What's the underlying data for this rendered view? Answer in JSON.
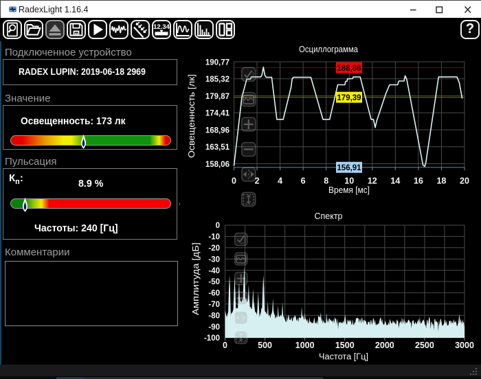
{
  "window": {
    "title": "RadexLight 1.16.4",
    "app_icon": "waveform-logo",
    "controls": {
      "minimize": "minimize",
      "maximize": "maximize",
      "close": "close"
    }
  },
  "toolbar": {
    "buttons": [
      {
        "name": "zoom-document",
        "icon": "zoom-document-icon"
      },
      {
        "name": "open-file",
        "icon": "open-folder-icon"
      },
      {
        "name": "eject-device",
        "icon": "eject-icon"
      },
      {
        "name": "save",
        "icon": "floppy-icon"
      },
      {
        "name": "start-measurement",
        "icon": "play-icon"
      },
      {
        "name": "record-waveform",
        "icon": "waveform-icon"
      },
      {
        "name": "light-rays",
        "icon": "light-rays-icon"
      },
      {
        "name": "numeric-display",
        "icon": "numeric-display-icon",
        "text": "12.34"
      },
      {
        "name": "oscillogram-view",
        "icon": "oscillogram-icon"
      },
      {
        "name": "spectrum-view",
        "icon": "spectrum-icon"
      },
      {
        "name": "layout-panels",
        "icon": "layout-icon"
      }
    ],
    "help_label": "?"
  },
  "left_panel": {
    "device": {
      "label": "Подключенное устройство",
      "value": "RADEX LUPIN: 2019-06-18 2969"
    },
    "value": {
      "label": "Значение",
      "reading": "Освещенность: 173 лк",
      "marker_pct": 45
    },
    "pulsation": {
      "label": "Пульсация",
      "kp_main": "К",
      "kp_sub": "п",
      "kp_colon": ":",
      "kp_value": "8.9 %",
      "marker_pct": 8.9,
      "freq": "Частоты: 240 [Гц]"
    },
    "comments": {
      "label": "Комментарии",
      "text": ""
    }
  },
  "chart_data": [
    {
      "type": "line",
      "title": "Осциллограмма",
      "xlabel": "Время [мс]",
      "ylabel": "Освещенность [лк]",
      "xlim": [
        0,
        20
      ],
      "ylim": [
        158.06,
        190.77
      ],
      "ytick_values": [
        190.77,
        185.32,
        179.87,
        174.41,
        168.96,
        163.51,
        158.06
      ],
      "ytick_labels": [
        "190,77",
        "185,32",
        "179,87",
        "174,41",
        "168,96",
        "163,51",
        "158,06"
      ],
      "xtick_values": [
        0,
        2,
        4,
        6,
        8,
        10,
        12,
        14,
        16,
        18,
        20
      ],
      "xtick_labels": [
        "0",
        "2",
        "4",
        "6",
        "8",
        "10",
        "12",
        "14",
        "16",
        "18",
        "20"
      ],
      "grid": true,
      "legend": "none",
      "line_color": "#d9f4f2",
      "ref_lines": [
        {
          "value": 188.86,
          "label": "188,86",
          "line_color": "#7e0606",
          "label_bg": "#ee0404"
        },
        {
          "value": 179.39,
          "label": "179,39",
          "line_color": "#7c7c04",
          "label_bg": "#f5ee00"
        },
        {
          "value": 156.91,
          "label": "156,91",
          "line_color": "#4f87b5",
          "label_bg": "#a6d2f2"
        }
      ],
      "series": [
        {
          "name": "illuminance",
          "points": [
            [
              0,
              157.4
            ],
            [
              0.68,
              179.3
            ],
            [
              1.05,
              184.4
            ],
            [
              1.1,
              185.2
            ],
            [
              1.42,
              185.2
            ],
            [
              1.5,
              185.9
            ],
            [
              2.32,
              185.9
            ],
            [
              2.42,
              186.4
            ],
            [
              2.55,
              189.05
            ],
            [
              2.68,
              186.4
            ],
            [
              2.8,
              185.8
            ],
            [
              3.27,
              185.8
            ],
            [
              3.72,
              172.3
            ],
            [
              4.27,
              172.3
            ],
            [
              4.95,
              182.5
            ],
            [
              5.05,
              185.3
            ],
            [
              5.15,
              185.8
            ],
            [
              6.67,
              185.8
            ],
            [
              7.72,
              172.3
            ],
            [
              8.3,
              172.3
            ],
            [
              9.0,
              183.4
            ],
            [
              9.62,
              183.4
            ],
            [
              9.68,
              184.5
            ],
            [
              9.8,
              184.5
            ],
            [
              9.85,
              185.3
            ],
            [
              10.3,
              185.4
            ],
            [
              10.35,
              185.9
            ],
            [
              10.95,
              185.9
            ],
            [
              11.9,
              172.3
            ],
            [
              12.1,
              172.3
            ],
            [
              12.25,
              169.7
            ],
            [
              12.4,
              172.0
            ],
            [
              13.2,
              180.8
            ],
            [
              13.5,
              183.4
            ],
            [
              14.2,
              183.4
            ],
            [
              14.3,
              184.6
            ],
            [
              14.75,
              184.6
            ],
            [
              14.85,
              186.3
            ],
            [
              15.0,
              185.0
            ],
            [
              15.1,
              183.0
            ],
            [
              16.4,
              157.6
            ],
            [
              16.55,
              157.2
            ],
            [
              16.65,
              158.5
            ],
            [
              17.75,
              185.9
            ],
            [
              19.35,
              185.9
            ],
            [
              19.55,
              184.0
            ],
            [
              19.8,
              179.0
            ]
          ]
        }
      ]
    },
    {
      "type": "area",
      "title": "Спектр",
      "xlabel": "Частота [Гц]",
      "ylabel": "Амплитуда [дБ]",
      "xlim": [
        0,
        3000
      ],
      "ylim": [
        -100,
        0
      ],
      "ytick_values": [
        0,
        -10,
        -20,
        -30,
        -40,
        -50,
        -60,
        -70,
        -80,
        -90,
        -100
      ],
      "ytick_labels": [
        "0",
        "-10",
        "-20",
        "-30",
        "-40",
        "-50",
        "-60",
        "-70",
        "-80",
        "-90",
        "-100"
      ],
      "xtick_values": [
        0,
        500,
        1000,
        1500,
        2000,
        2500,
        3000
      ],
      "xtick_labels": [
        "0",
        "500",
        "1000",
        "1500",
        "2000",
        "2500",
        "3000"
      ],
      "grid_x_step": 250,
      "grid": true,
      "fill_color": "#d6eff1",
      "x_step": 8,
      "values": [
        -75.6,
        -77.9,
        -80.7,
        -81.4,
        -78.7,
        -76.9,
        -56.3,
        -44.2,
        -57.3,
        -80.0,
        -77.7,
        -77.8,
        -76.7,
        -74.3,
        -59.3,
        -45.9,
        -57.9,
        -74.5,
        -73.2,
        -73.8,
        -73.9,
        -61.6,
        -50.3,
        -62.7,
        -67.4,
        -67.5,
        -68.3,
        -65.4,
        -66.6,
        -49.2,
        -37.0,
        -48.4,
        -66.2,
        -64.5,
        -67.4,
        -68.3,
        -64.4,
        -52.8,
        -65.4,
        -72.8,
        -72.4,
        -74.5,
        -74.0,
        -67.0,
        -56.4,
        -68.1,
        -72.1,
        -76.7,
        -77.5,
        -77.6,
        -80.0,
        -70.3,
        -59.1,
        -71.4,
        -81.6,
        -79.5,
        -77.7,
        -73.8,
        -73.5,
        -56.5,
        -44.1,
        -55.1,
        -75.7,
        -77.2,
        -76.9,
        -78.7,
        -79.0,
        -67.2,
        -79.8,
        -80.9,
        -79.3,
        -82.6,
        -79.2,
        -78.5,
        -75.7,
        -64.9,
        -76.3,
        -78.8,
        -80.1,
        -83.1,
        -81.4,
        -80.5,
        -82.1,
        -71.0,
        -80.7,
        -81.3,
        -80.9,
        -79.5,
        -81.3,
        -78.5,
        -68.2,
        -80.6,
        -81.1,
        -83.1,
        -83.9,
        -85.8,
        -85.8,
        -80.0,
        -85.6,
        -80.1,
        -80.2,
        -83.9,
        -84.4,
        -83.4,
        -81.4,
        -84.9,
        -85.2,
        -80.8,
        -82.6,
        -80.6,
        -80.2,
        -82.0,
        -84.6,
        -84.9,
        -81.6,
        -86.2,
        -81.2,
        -82.5,
        -82.0,
        -82.9,
        -72.2,
        -81.8,
        -79.8,
        -82.3,
        -84.3,
        -77.7,
        -83.4,
        -83.3,
        -85.6,
        -83.2,
        -86.6,
        -87.4,
        -81.5,
        -85.9,
        -85.5,
        -86.3,
        -87.2,
        -86.3,
        -87.4,
        -84.3,
        -81.7,
        -86.7,
        -87.1,
        -87.1,
        -84.3,
        -88.6,
        -80.1,
        -81.0,
        -81.2,
        -82.1,
        -77.3,
        -85.7,
        -82.5,
        -87.6,
        -84.0,
        -86.4,
        -86.4,
        -87.3,
        -86.1,
        -77.7,
        -86.8,
        -82.9,
        -86.9,
        -82.7,
        -83.0,
        -84.3,
        -84.4,
        -85.7,
        -84.2,
        -86.8,
        -82.6,
        -87.6,
        -81.7,
        -83.0,
        -83.6,
        -88.1,
        -82.2,
        -92.5,
        -85.7,
        -86.9,
        -86.1,
        -86.0,
        -87.3,
        -86.2,
        -87.1,
        -84.5,
        -87.1,
        -83.1,
        -79.3,
        -83.7,
        -87.8,
        -88.3,
        -83.5,
        -84.6,
        -85.9,
        -83.8,
        -86.3,
        -83.4,
        -88.4,
        -88.0,
        -83.4,
        -88.4,
        -88.4,
        -86.1,
        -86.7,
        -82.8,
        -82.7,
        -82.1,
        -82.6,
        -83.0,
        -86.9,
        -83.0,
        -83.8,
        -87.4,
        -81.9,
        -83.0,
        -87.1,
        -83.9,
        -84.3,
        -85.7,
        -84.3,
        -85.9,
        -88.3,
        -88.5,
        -85.7,
        -85.8,
        -85.5,
        -88.7,
        -84.5,
        -84.2,
        -88.6,
        -86.2,
        -82.5,
        -83.3,
        -87.6,
        -83.8,
        -88.6,
        -88.8,
        -87.4,
        -88.6,
        -87.3,
        -87.3,
        -84.3,
        -82.3,
        -82.2,
        -86.8,
        -83.1,
        -86.7,
        -88.1,
        -88.6,
        -87.0,
        -84.6,
        -86.9,
        -88.9,
        -88.7,
        -88.2,
        -85.9,
        -89.0,
        -83.1,
        -84.8,
        -86.5,
        -87.6,
        -86.7,
        -84.2,
        -85.8,
        -87.3,
        -85.4,
        -87.9,
        -88.1,
        -83.4,
        -84.8,
        -85.5,
        -91.4,
        -87.3,
        -86.1,
        -84.8,
        -87.6,
        -81.3,
        -88.2,
        -82.5,
        -87.3,
        -82.7,
        -88.4,
        -85.3,
        -86.9,
        -86.8,
        -85.5,
        -83.8,
        -84.3,
        -85.1,
        -87.0,
        -85.8,
        -91.7,
        -85.1,
        -84.9,
        -84.2,
        -87.2,
        -88.2,
        -85.6,
        -86.8,
        -88.1,
        -86.1,
        -85.0,
        -83.0,
        -87.0,
        -81.1,
        -88.2,
        -85.9,
        -87.2,
        -84.9,
        -84.6,
        -83.6,
        -85.7,
        -88.4,
        -88.6,
        -91.6,
        -84.6,
        -83.9,
        -88.2,
        -83.6,
        -81.0,
        -84.4,
        -92.4,
        -85.5,
        -86.2,
        -88.4,
        -87.2,
        -93.2,
        -83.3,
        -83.3,
        -86.3,
        -84.5,
        -86.3,
        -86.3,
        -94.2,
        -84.1,
        -88.8,
        -84.0,
        -82.9,
        -85.9,
        -89.0,
        -89.2,
        -88.4,
        -87.1,
        -83.4,
        -85.3,
        -87.7,
        -84.1,
        -89.5,
        -88.7,
        -88.7,
        -84.8,
        -84.9,
        -84.8,
        -87.6,
        -84.6,
        -86.7,
        -87.3,
        -83.4,
        -85.6,
        -86.9,
        -84.7,
        -86.3,
        -89.7,
        -89.0,
        -86.9,
        -83.3,
        -78.8,
        -87.3,
        -82.9,
        -85.6,
        -87.9,
        -83.6,
        -86.5,
        -86.1,
        -90.9
      ]
    }
  ],
  "chart_overlay_buttons": [
    {
      "name": "chart-apply",
      "icon": "check-icon"
    },
    {
      "name": "chart-curve",
      "icon": "wave-box-icon"
    },
    {
      "name": "chart-zoom-in",
      "icon": "plus-icon"
    },
    {
      "name": "chart-zoom-out",
      "icon": "minus-icon"
    },
    {
      "name": "chart-fit-width",
      "icon": "h-arrows-icon"
    },
    {
      "name": "chart-fit-height",
      "icon": "v-range-icon"
    }
  ],
  "colors": {
    "accent_red": "#ee0404",
    "accent_yellow": "#f5ee00",
    "accent_blue": "#a6d2f2",
    "bar_green": "#0f930f",
    "bar_red": "#e60000"
  },
  "status_bar": {
    "grip_icon": "resize-grip-icon"
  }
}
